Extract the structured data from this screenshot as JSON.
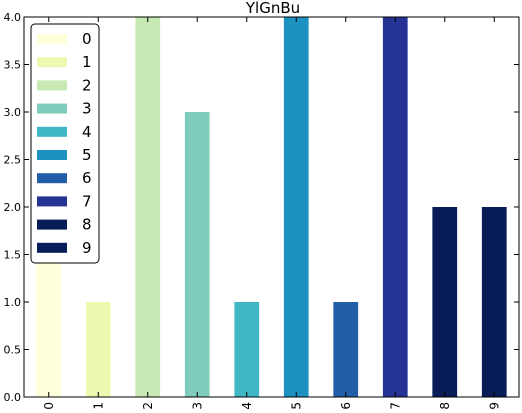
{
  "chart_data": {
    "type": "bar",
    "title": "YlGnBu",
    "xlabel": "",
    "ylabel": "",
    "categories": [
      "0",
      "1",
      "2",
      "3",
      "4",
      "5",
      "6",
      "7",
      "8",
      "9"
    ],
    "values": [
      2,
      1,
      4,
      3,
      1,
      4,
      1,
      4,
      2,
      2
    ],
    "colors": [
      "#ffffd9",
      "#edf8b1",
      "#c7e9b4",
      "#7fcdbb",
      "#41b6c4",
      "#1d91c0",
      "#225ea8",
      "#253494",
      "#081d58",
      "#081d58"
    ],
    "ylim": [
      0,
      4
    ],
    "yticks": [
      "0.0",
      "0.5",
      "1.0",
      "1.5",
      "2.0",
      "2.5",
      "3.0",
      "3.5",
      "4.0"
    ],
    "legend": {
      "placement": "top-left",
      "entries": [
        "0",
        "1",
        "2",
        "3",
        "4",
        "5",
        "6",
        "7",
        "8",
        "9"
      ]
    },
    "grid": false
  }
}
